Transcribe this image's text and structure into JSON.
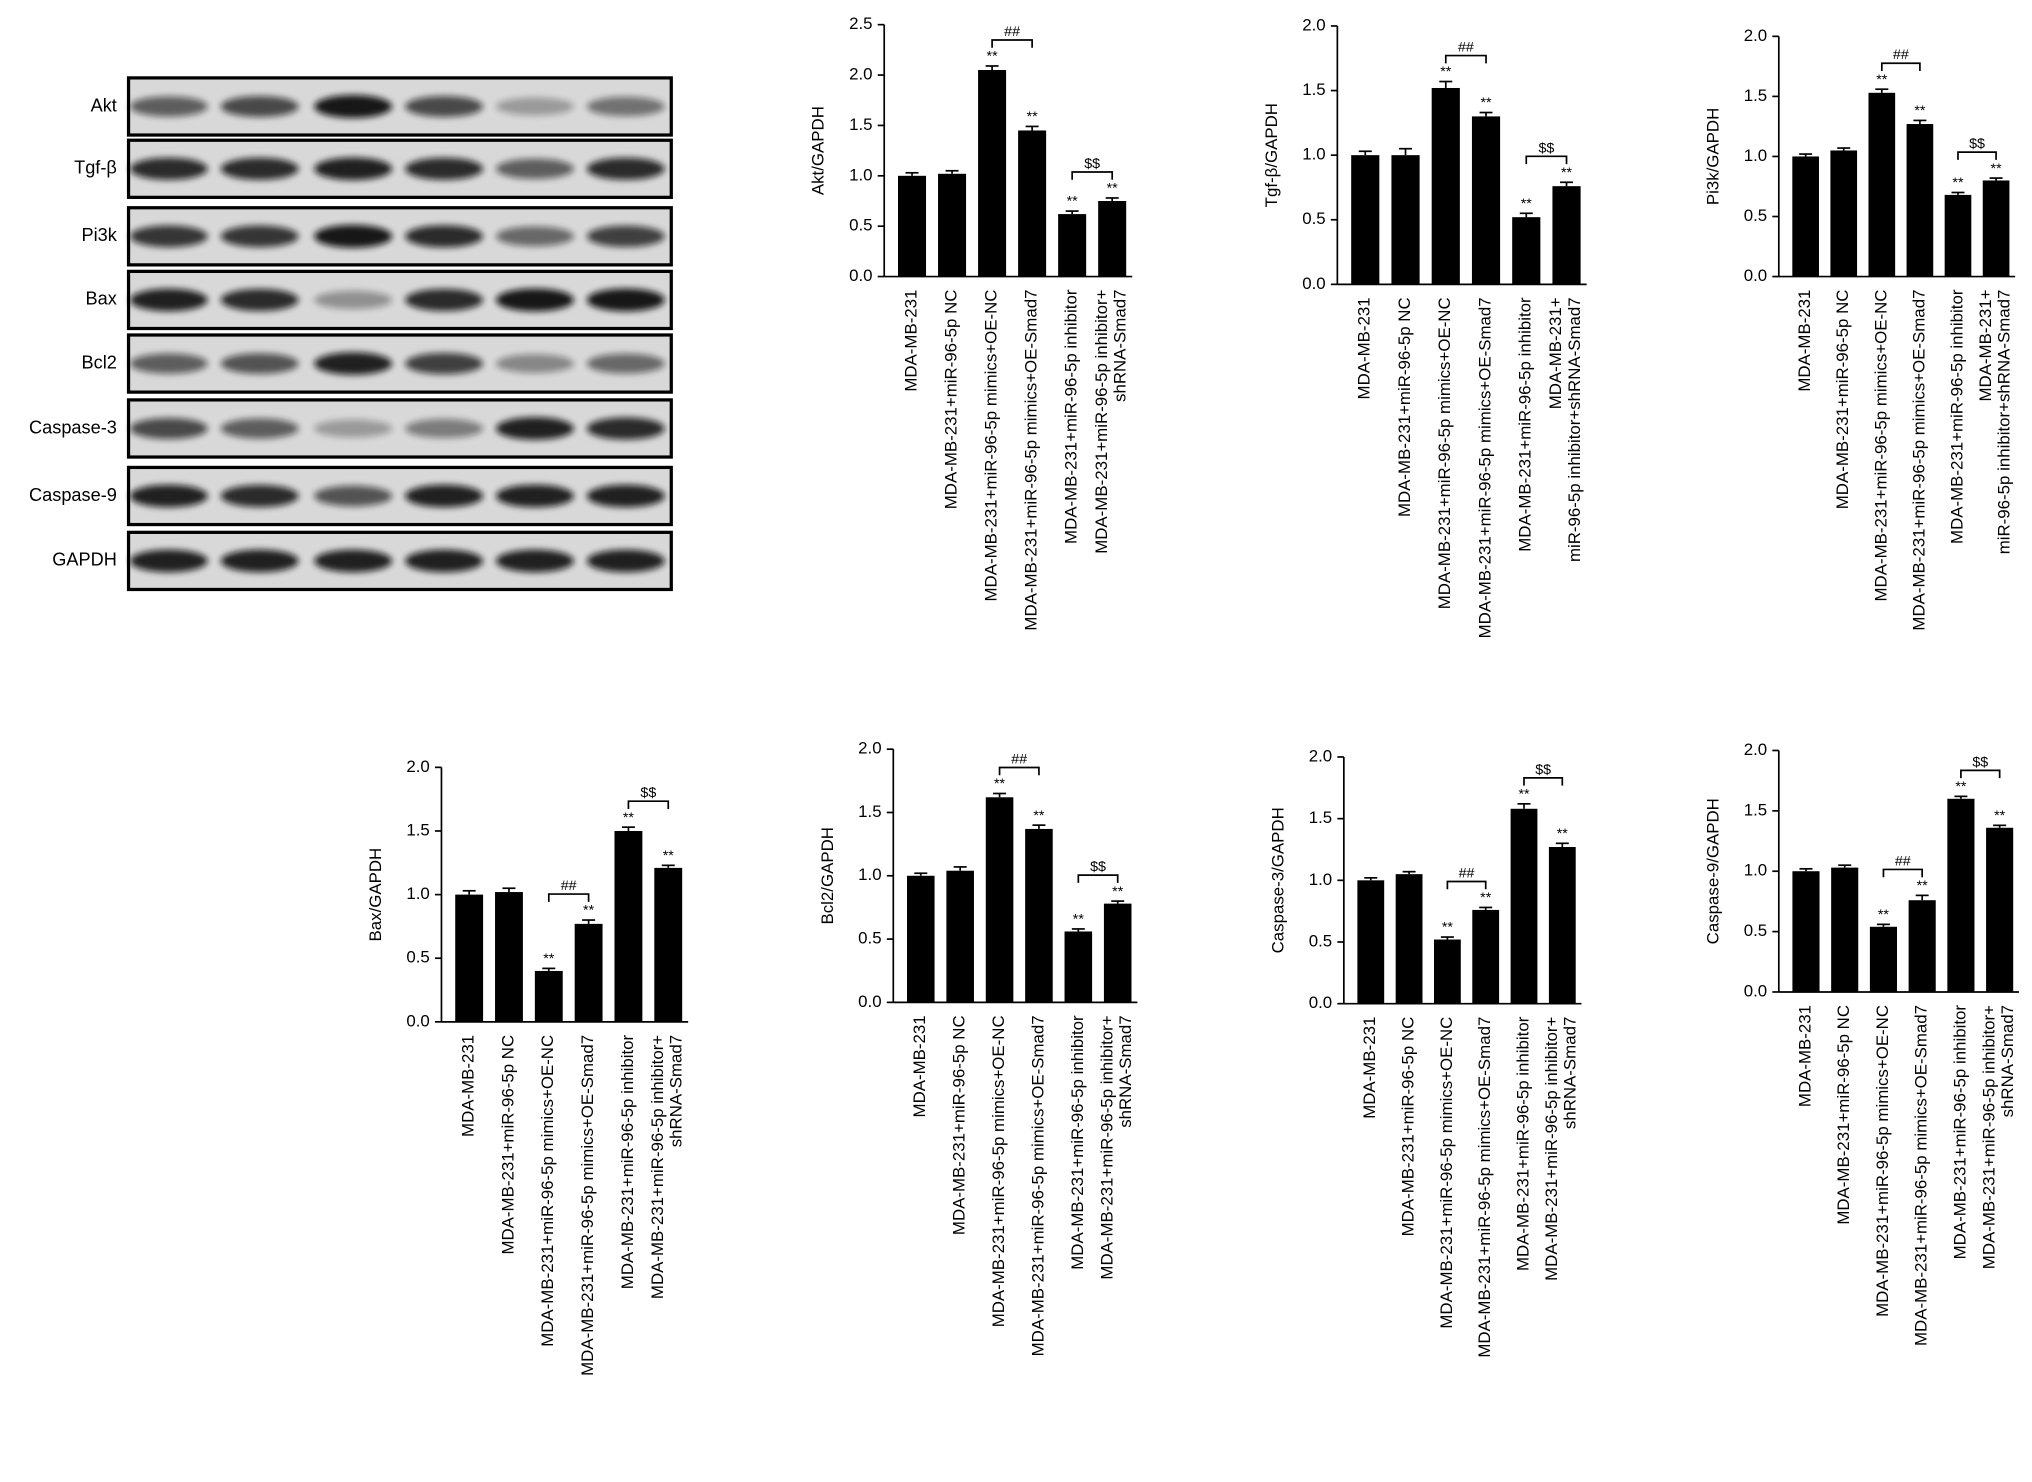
{
  "blot": {
    "labels": [
      "Akt",
      "Tgf-β",
      "Pi3k",
      "Bax",
      "Bcl2",
      "Caspase-3",
      "Caspase-9",
      "GAPDH"
    ]
  },
  "chart_data": [
    {
      "type": "bar",
      "ylabel": "Akt/GAPDH",
      "categories": [
        "MDA-MB-231",
        "MDA-MB-231+miR-96-5p NC",
        "MDA-MB-231+miR-96-5p mimics+OE-NC",
        "MDA-MB-231+miR-96-5p mimics+OE-Smad7",
        "MDA-MB-231+miR-96-5p inhibitor",
        "MDA-MB-231+miR-96-5p inhibitor+\nshRNA-Smad7"
      ],
      "values": [
        1.0,
        1.02,
        2.05,
        1.45,
        0.62,
        0.75
      ],
      "errors": [
        0.03,
        0.03,
        0.04,
        0.04,
        0.03,
        0.03
      ],
      "significance": [
        null,
        null,
        "**",
        "**",
        "**",
        "**"
      ],
      "brackets": [
        {
          "label": "##",
          "between": [
            2,
            3
          ]
        },
        {
          "label": "$$",
          "between": [
            4,
            5
          ]
        }
      ],
      "color": "#000000",
      "ylim": [
        0,
        2.5
      ],
      "yticks": [
        {
          "value": 0,
          "label": "0.0"
        },
        0.5,
        {
          "value": 1,
          "label": "1.0"
        },
        1.5,
        {
          "value": 2,
          "label": "2.0"
        },
        2.5
      ]
    },
    {
      "type": "bar",
      "ylabel": "Tgf-β/GAPDH",
      "categories": [
        "MDA-MB-231",
        "MDA-MB-231+miR-96-5p NC",
        "MDA-MB-231+miR-96-5p mimics+OE-NC",
        "MDA-MB-231+miR-96-5p mimics+OE-Smad7",
        "MDA-MB-231+miR-96-5p inhibitor",
        "MDA-MB-231+\nmiR-96-5p inhibitor+shRNA-Smad7"
      ],
      "values": [
        1.0,
        1.0,
        1.52,
        1.3,
        0.52,
        0.76
      ],
      "errors": [
        0.03,
        0.05,
        0.05,
        0.03,
        0.03,
        0.03
      ],
      "significance": [
        null,
        null,
        "**",
        "**",
        "**",
        "**"
      ],
      "brackets": [
        {
          "label": "##",
          "between": [
            2,
            3
          ]
        },
        {
          "label": "$$",
          "between": [
            4,
            5
          ]
        }
      ],
      "color": "#000000",
      "ylim": [
        0,
        2
      ],
      "yticks": [
        {
          "value": 0,
          "label": "0.0"
        },
        0.5,
        {
          "value": 1,
          "label": "1.0"
        },
        1.5,
        {
          "value": 2,
          "label": "2.0"
        }
      ]
    },
    {
      "type": "bar",
      "ylabel": "Pi3k/GAPDH",
      "categories": [
        "MDA-MB-231",
        "MDA-MB-231+miR-96-5p NC",
        "MDA-MB-231+miR-96-5p mimics+OE-NC",
        "MDA-MB-231+miR-96-5p mimics+OE-Smad7",
        "MDA-MB-231+miR-96-5p inhibitor",
        "MDA-MB-231+\nmiR-96-5p inhibitor+shRNA-Smad7"
      ],
      "values": [
        1.0,
        1.05,
        1.53,
        1.27,
        0.68,
        0.8
      ],
      "errors": [
        0.02,
        0.02,
        0.03,
        0.03,
        0.02,
        0.02
      ],
      "significance": [
        null,
        null,
        "**",
        "**",
        "**",
        "**"
      ],
      "brackets": [
        {
          "label": "##",
          "between": [
            2,
            3
          ]
        },
        {
          "label": "$$",
          "between": [
            4,
            5
          ]
        }
      ],
      "color": "#000000",
      "ylim": [
        0,
        2
      ],
      "yticks": [
        {
          "value": 0,
          "label": "0.0"
        },
        0.5,
        {
          "value": 1,
          "label": "1.0"
        },
        1.5,
        {
          "value": 2,
          "label": "2.0"
        }
      ]
    },
    {
      "type": "bar",
      "ylabel": "Bax/GAPDH",
      "categories": [
        "MDA-MB-231",
        "MDA-MB-231+miR-96-5p NC",
        "MDA-MB-231+miR-96-5p mimics+OE-NC",
        "MDA-MB-231+miR-96-5p mimics+OE-Smad7",
        "MDA-MB-231+miR-96-5p inhibitor",
        "MDA-MB-231+miR-96-5p inhibitor+\nshRNA-Smad7"
      ],
      "values": [
        1.0,
        1.02,
        0.4,
        0.77,
        1.5,
        1.21
      ],
      "errors": [
        0.03,
        0.03,
        0.02,
        0.03,
        0.03,
        0.02
      ],
      "significance": [
        null,
        null,
        "**",
        "**",
        "**",
        "**"
      ],
      "brackets": [
        {
          "label": "##",
          "between": [
            2,
            3
          ]
        },
        {
          "label": "$$",
          "between": [
            4,
            5
          ]
        }
      ],
      "color": "#000000",
      "ylim": [
        0,
        2
      ],
      "yticks": [
        {
          "value": 0,
          "label": "0.0"
        },
        0.5,
        {
          "value": 1,
          "label": "1.0"
        },
        1.5,
        {
          "value": 2,
          "label": "2.0"
        }
      ]
    },
    {
      "type": "bar",
      "ylabel": "Bcl2/GAPDH",
      "categories": [
        "MDA-MB-231",
        "MDA-MB-231+miR-96-5p NC",
        "MDA-MB-231+miR-96-5p mimics+OE-NC",
        "MDA-MB-231+miR-96-5p mimics+OE-Smad7",
        "MDA-MB-231+miR-96-5p inhibitor",
        "MDA-MB-231+miR-96-5p inhibitor+\nshRNA-Smad7"
      ],
      "values": [
        1.0,
        1.04,
        1.62,
        1.37,
        0.56,
        0.78
      ],
      "errors": [
        0.02,
        0.03,
        0.03,
        0.03,
        0.02,
        0.02
      ],
      "significance": [
        null,
        null,
        "**",
        "**",
        "**",
        "**"
      ],
      "brackets": [
        {
          "label": "##",
          "between": [
            2,
            3
          ]
        },
        {
          "label": "$$",
          "between": [
            4,
            5
          ]
        }
      ],
      "color": "#000000",
      "ylim": [
        0,
        2
      ],
      "yticks": [
        {
          "value": 0,
          "label": "0.0"
        },
        0.5,
        {
          "value": 1,
          "label": "1.0"
        },
        1.5,
        {
          "value": 2,
          "label": "2.0"
        }
      ]
    },
    {
      "type": "bar",
      "ylabel": "Caspase-3/GAPDH",
      "categories": [
        "MDA-MB-231",
        "MDA-MB-231+miR-96-5p NC",
        "MDA-MB-231+miR-96-5p mimics+OE-NC",
        "MDA-MB-231+miR-96-5p mimics+OE-Smad7",
        "MDA-MB-231+miR-96-5p inhibitor",
        "MDA-MB-231+miR-96-5p inhibitor+\nshRNA-Smad7"
      ],
      "values": [
        1.0,
        1.05,
        0.52,
        0.76,
        1.58,
        1.27
      ],
      "errors": [
        0.02,
        0.02,
        0.02,
        0.02,
        0.04,
        0.03
      ],
      "significance": [
        null,
        null,
        "**",
        "**",
        "**",
        "**"
      ],
      "brackets": [
        {
          "label": "##",
          "between": [
            2,
            3
          ]
        },
        {
          "label": "$$",
          "between": [
            4,
            5
          ]
        }
      ],
      "color": "#000000",
      "ylim": [
        0,
        2
      ],
      "yticks": [
        {
          "value": 0,
          "label": "0.0"
        },
        0.5,
        {
          "value": 1,
          "label": "1.0"
        },
        1.5,
        {
          "value": 2,
          "label": "2.0"
        }
      ]
    },
    {
      "type": "bar",
      "ylabel": "Caspase-9/GAPDH",
      "categories": [
        "MDA-MB-231",
        "MDA-MB-231+miR-96-5p NC",
        "MDA-MB-231+miR-96-5p mimics+OE-NC",
        "MDA-MB-231+miR-96-5p mimics+OE-Smad7",
        "MDA-MB-231+miR-96-5p inhibitor",
        "MDA-MB-231+miR-96-5p inhibitor+\nshRNA-Smad7"
      ],
      "values": [
        1.0,
        1.03,
        0.54,
        0.76,
        1.6,
        1.36
      ],
      "errors": [
        0.02,
        0.02,
        0.02,
        0.04,
        0.02,
        0.02
      ],
      "significance": [
        null,
        null,
        "**",
        "**",
        "**",
        "**"
      ],
      "brackets": [
        {
          "label": "##",
          "between": [
            2,
            3
          ]
        },
        {
          "label": "$$",
          "between": [
            4,
            5
          ]
        }
      ],
      "color": "#000000",
      "ylim": [
        0,
        2
      ],
      "yticks": [
        {
          "value": 0,
          "label": "0.0"
        },
        0.5,
        {
          "value": 1,
          "label": "1.0"
        },
        1.5,
        {
          "value": 2,
          "label": "2.0"
        }
      ]
    }
  ]
}
